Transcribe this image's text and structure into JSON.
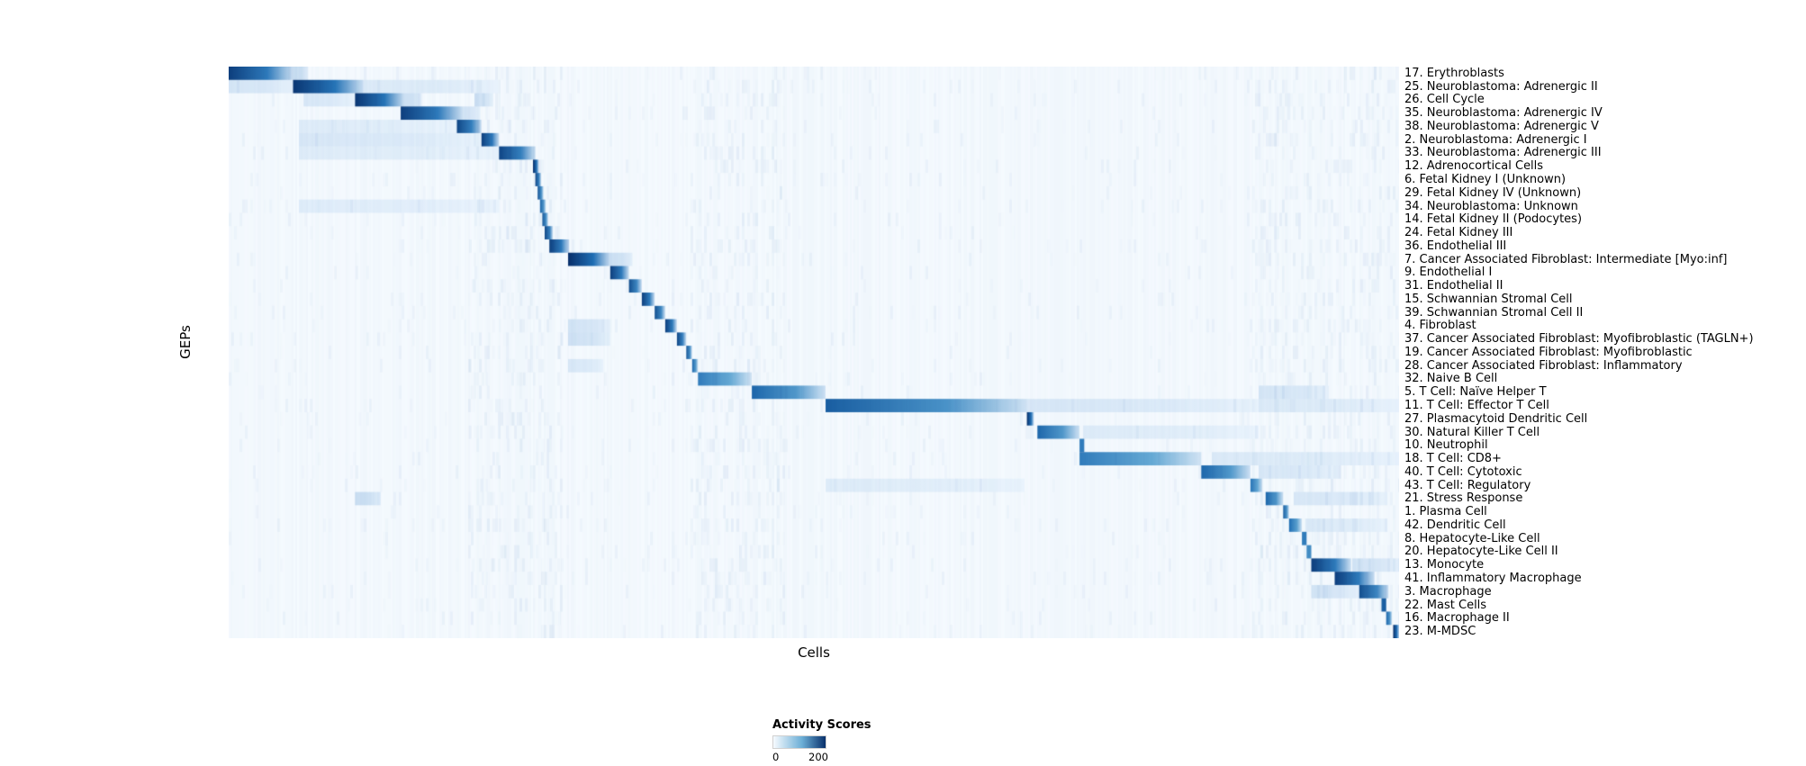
{
  "chart_data": {
    "type": "heatmap",
    "title": "",
    "xlabel": "Cells",
    "ylabel": "GEPs",
    "colorbar": {
      "label": "Activity Scores",
      "min": 0,
      "max": 200,
      "colors": [
        "#f7fbff",
        "#6baed6",
        "#08306b"
      ]
    },
    "noise_bands": [
      [
        0.205,
        0.285
      ],
      [
        0.395,
        0.475
      ],
      [
        0.875,
        1.0
      ]
    ],
    "rows": [
      {
        "label": "17. Erythroblasts",
        "blocks": [
          [
            0.0,
            0.055,
            190
          ],
          [
            0.055,
            0.068,
            60
          ]
        ]
      },
      {
        "label": "25. Neuroblastoma: Adrenergic II",
        "blocks": [
          [
            0.055,
            0.115,
            195
          ],
          [
            0.0,
            0.055,
            35
          ],
          [
            0.115,
            0.23,
            25
          ]
        ]
      },
      {
        "label": "26. Cell Cycle",
        "blocks": [
          [
            0.108,
            0.15,
            195
          ],
          [
            0.15,
            0.165,
            50
          ],
          [
            0.21,
            0.226,
            45
          ],
          [
            0.064,
            0.108,
            30
          ]
        ]
      },
      {
        "label": "35. Neuroblastoma: Adrenergic IV",
        "blocks": [
          [
            0.147,
            0.2,
            190
          ],
          [
            0.2,
            0.215,
            40
          ]
        ]
      },
      {
        "label": "38. Neuroblastoma: Adrenergic V",
        "blocks": [
          [
            0.195,
            0.216,
            185
          ],
          [
            0.06,
            0.195,
            20
          ]
        ]
      },
      {
        "label": "2. Neuroblastoma: Adrenergic I",
        "blocks": [
          [
            0.216,
            0.231,
            190
          ],
          [
            0.06,
            0.216,
            30
          ]
        ]
      },
      {
        "label": "33. Neuroblastoma: Adrenergic III",
        "blocks": [
          [
            0.231,
            0.262,
            185
          ],
          [
            0.06,
            0.231,
            20
          ]
        ]
      },
      {
        "label": "12. Adrenocortical Cells",
        "blocks": [
          [
            0.26,
            0.265,
            200
          ]
        ]
      },
      {
        "label": "6. Fetal Kidney I (Unknown)",
        "blocks": [
          [
            0.262,
            0.267,
            185
          ]
        ]
      },
      {
        "label": "29. Fetal Kidney IV (Unknown)",
        "blocks": [
          [
            0.264,
            0.269,
            175
          ]
        ]
      },
      {
        "label": "34. Neuroblastoma: Unknown",
        "blocks": [
          [
            0.266,
            0.271,
            165
          ],
          [
            0.06,
            0.231,
            18
          ]
        ]
      },
      {
        "label": "14. Fetal Kidney II (Podocytes)",
        "blocks": [
          [
            0.268,
            0.273,
            175
          ]
        ]
      },
      {
        "label": "24. Fetal Kidney III",
        "blocks": [
          [
            0.27,
            0.277,
            185
          ]
        ]
      },
      {
        "label": "36. Endothelial III",
        "blocks": [
          [
            0.274,
            0.291,
            190
          ]
        ]
      },
      {
        "label": "7. Cancer Associated Fibroblast: Intermediate [Myo:inf]",
        "blocks": [
          [
            0.29,
            0.326,
            200
          ],
          [
            0.326,
            0.345,
            50
          ]
        ]
      },
      {
        "label": "9. Endothelial I",
        "blocks": [
          [
            0.326,
            0.342,
            190
          ]
        ]
      },
      {
        "label": "31. Endothelial II",
        "blocks": [
          [
            0.342,
            0.353,
            180
          ]
        ]
      },
      {
        "label": "15. Schwannian Stromal Cell",
        "blocks": [
          [
            0.353,
            0.364,
            190
          ]
        ]
      },
      {
        "label": "39. Schwannian Stromal Cell II",
        "blocks": [
          [
            0.364,
            0.373,
            180
          ]
        ]
      },
      {
        "label": "4. Fibroblast",
        "blocks": [
          [
            0.373,
            0.383,
            190
          ],
          [
            0.29,
            0.326,
            40
          ]
        ]
      },
      {
        "label": "37. Cancer Associated Fibroblast: Myofibroblastic (TAGLN+)",
        "blocks": [
          [
            0.383,
            0.391,
            185
          ],
          [
            0.29,
            0.326,
            45
          ]
        ]
      },
      {
        "label": "19. Cancer Associated Fibroblast: Myofibroblastic",
        "blocks": [
          [
            0.391,
            0.396,
            175
          ]
        ]
      },
      {
        "label": "28. Cancer Associated Fibroblast: Inflammatory",
        "blocks": [
          [
            0.396,
            0.401,
            165
          ],
          [
            0.29,
            0.32,
            30
          ]
        ]
      },
      {
        "label": "32. Naive B Cell",
        "blocks": [
          [
            0.401,
            0.447,
            150
          ]
        ]
      },
      {
        "label": "5. T Cell: Naïve Helper T",
        "blocks": [
          [
            0.447,
            0.51,
            165
          ],
          [
            0.88,
            0.94,
            35
          ]
        ]
      },
      {
        "label": "11. T Cell: Effector T Cell",
        "blocks": [
          [
            0.51,
            0.682,
            170
          ],
          [
            0.682,
            0.88,
            30
          ],
          [
            0.88,
            1.0,
            25
          ]
        ]
      },
      {
        "label": "27. Plasmacytoid Dendritic Cell",
        "blocks": [
          [
            0.682,
            0.688,
            200
          ]
        ]
      },
      {
        "label": "30. Natural Killer T Cell",
        "blocks": [
          [
            0.691,
            0.727,
            165
          ],
          [
            0.73,
            0.88,
            20
          ]
        ]
      },
      {
        "label": "10. Neutrophil",
        "blocks": [
          [
            0.727,
            0.731,
            150
          ]
        ]
      },
      {
        "label": "18. T Cell: CD8+",
        "blocks": [
          [
            0.727,
            0.831,
            150
          ],
          [
            0.84,
            1.0,
            25
          ]
        ]
      },
      {
        "label": "40. T Cell: Cytotoxic",
        "blocks": [
          [
            0.831,
            0.873,
            165
          ],
          [
            0.88,
            0.95,
            30
          ]
        ]
      },
      {
        "label": "43. T Cell: Regulatory",
        "blocks": [
          [
            0.873,
            0.883,
            155
          ],
          [
            0.51,
            0.68,
            20
          ]
        ]
      },
      {
        "label": "21. Stress Response",
        "blocks": [
          [
            0.886,
            0.901,
            165
          ],
          [
            0.108,
            0.13,
            55
          ],
          [
            0.91,
            0.99,
            30
          ]
        ]
      },
      {
        "label": "1. Plasma Cell",
        "blocks": [
          [
            0.901,
            0.906,
            170
          ]
        ]
      },
      {
        "label": "42. Dendritic Cell",
        "blocks": [
          [
            0.906,
            0.917,
            160
          ],
          [
            0.92,
            0.99,
            25
          ]
        ]
      },
      {
        "label": "8. Hepatocyte-Like Cell",
        "blocks": [
          [
            0.917,
            0.921,
            150
          ]
        ]
      },
      {
        "label": "20. Hepatocyte-Like Cell II",
        "blocks": [
          [
            0.921,
            0.925,
            140
          ]
        ]
      },
      {
        "label": "13. Monocyte",
        "blocks": [
          [
            0.925,
            0.959,
            190
          ],
          [
            0.96,
            1.0,
            40
          ]
        ]
      },
      {
        "label": "41. Inflammatory Macrophage",
        "blocks": [
          [
            0.945,
            0.979,
            190
          ]
        ]
      },
      {
        "label": "3. Macrophage",
        "blocks": [
          [
            0.966,
            0.991,
            180
          ],
          [
            0.925,
            0.966,
            40
          ]
        ]
      },
      {
        "label": "22. Mast Cells",
        "blocks": [
          [
            0.985,
            0.989,
            170
          ]
        ]
      },
      {
        "label": "16. Macrophage II",
        "blocks": [
          [
            0.989,
            0.994,
            165
          ]
        ]
      },
      {
        "label": "23. M-MDSC",
        "blocks": [
          [
            0.995,
            1.0,
            200
          ]
        ]
      }
    ]
  }
}
